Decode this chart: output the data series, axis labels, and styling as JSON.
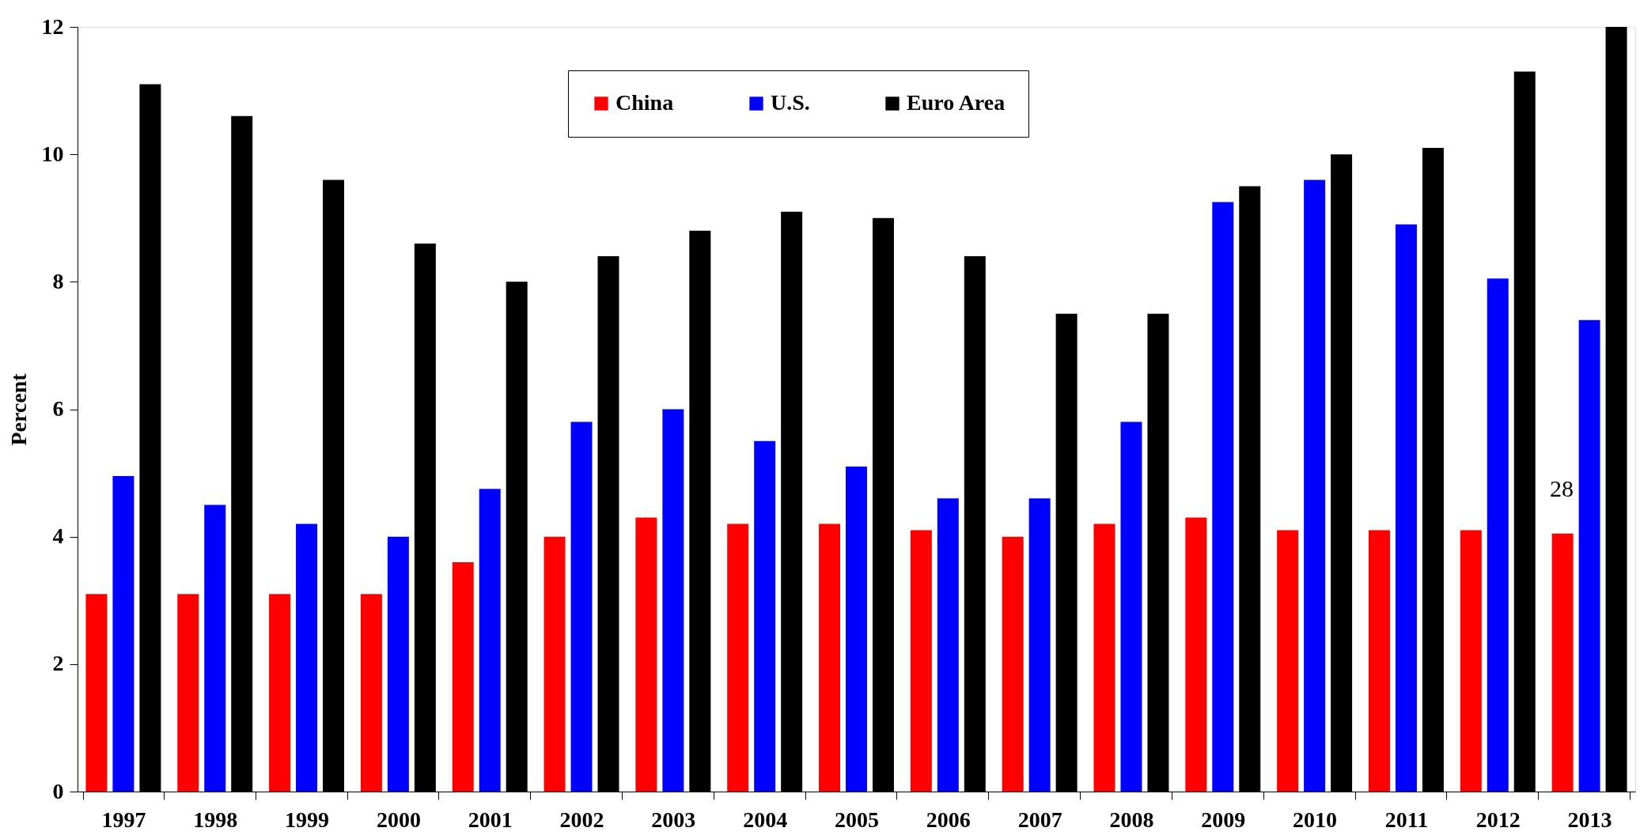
{
  "chart_data": {
    "type": "bar",
    "ylabel": "Percent",
    "categories": [
      "1997",
      "1998",
      "1999",
      "2000",
      "2001",
      "2002",
      "2003",
      "2004",
      "2005",
      "2006",
      "2007",
      "2008",
      "2009",
      "2010",
      "2011",
      "2012",
      "2013"
    ],
    "series": [
      {
        "name": "China",
        "color": "#ff0000",
        "values": [
          3.1,
          3.1,
          3.1,
          3.1,
          3.6,
          4.0,
          4.3,
          4.2,
          4.2,
          4.1,
          4.0,
          4.2,
          4.3,
          4.1,
          4.1,
          4.1,
          4.05
        ]
      },
      {
        "name": "U.S.",
        "color": "#0000ff",
        "values": [
          4.95,
          4.5,
          4.2,
          4.0,
          4.75,
          5.8,
          6.0,
          5.5,
          5.1,
          4.6,
          4.6,
          5.8,
          9.25,
          9.6,
          8.9,
          8.05,
          7.4
        ]
      },
      {
        "name": "Euro Area",
        "color": "#000000",
        "values": [
          11.1,
          10.6,
          9.6,
          8.6,
          8.0,
          8.4,
          8.8,
          9.1,
          9.0,
          8.4,
          7.5,
          7.5,
          9.5,
          10.0,
          10.1,
          11.3,
          12.0
        ]
      }
    ],
    "ylim": [
      0,
      12
    ],
    "yticks": [
      0,
      2,
      4,
      6,
      8,
      10,
      12
    ],
    "grid": false,
    "legend": "top",
    "annotations": [
      "28"
    ]
  }
}
